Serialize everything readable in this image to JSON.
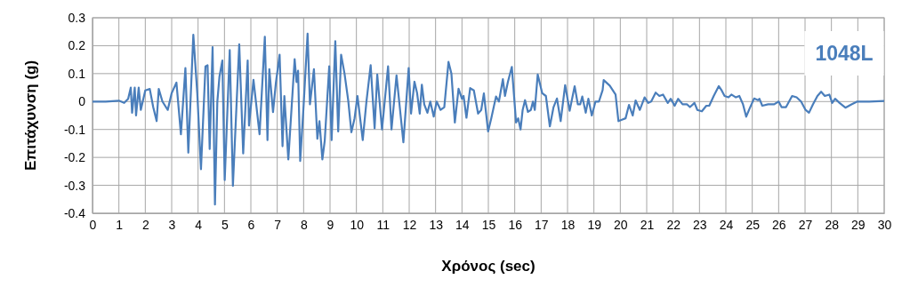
{
  "chart_data": {
    "type": "line",
    "xlabel": "Χρόνος (sec)",
    "ylabel": "Επιτάχυνση (g)",
    "annotations": [
      "1048L"
    ],
    "xlim": [
      0,
      30
    ],
    "xticks": [
      0,
      1,
      2,
      3,
      4,
      5,
      6,
      7,
      8,
      9,
      10,
      11,
      12,
      13,
      14,
      15,
      16,
      17,
      18,
      19,
      20,
      21,
      22,
      23,
      24,
      25,
      26,
      27,
      28,
      29,
      30
    ],
    "ylim": [
      -0.4,
      0.3
    ],
    "yticks": [
      -0.4,
      -0.3,
      -0.2,
      -0.1,
      0,
      0.1,
      0.2,
      0.3
    ],
    "grid": true,
    "line_style": "solid",
    "series": [
      {
        "color": "#4a7ebb",
        "x": [
          0,
          0.5,
          1.0,
          1.2,
          1.35,
          1.45,
          1.5,
          1.6,
          1.65,
          1.75,
          1.83,
          2.0,
          2.17,
          2.3,
          2.43,
          2.51,
          2.65,
          2.85,
          3.0,
          3.18,
          3.35,
          3.52,
          3.63,
          3.82,
          3.97,
          4.11,
          4.28,
          4.36,
          4.44,
          4.55,
          4.64,
          4.73,
          4.81,
          4.92,
          5.01,
          5.2,
          5.32,
          5.56,
          5.71,
          5.88,
          5.93,
          6.1,
          6.33,
          6.53,
          6.63,
          6.7,
          6.84,
          6.95,
          7.09,
          7.2,
          7.27,
          7.42,
          7.66,
          7.73,
          7.79,
          7.87,
          8.0,
          8.15,
          8.24,
          8.39,
          8.52,
          8.6,
          8.71,
          8.8,
          8.97,
          9.06,
          9.2,
          9.31,
          9.42,
          9.55,
          9.69,
          9.81,
          9.93,
          10.04,
          10.24,
          10.38,
          10.54,
          10.69,
          10.79,
          10.97,
          11.2,
          11.33,
          11.52,
          11.78,
          11.98,
          12.07,
          12.2,
          12.3,
          12.4,
          12.48,
          12.57,
          12.69,
          12.8,
          12.93,
          13.04,
          13.19,
          13.33,
          13.49,
          13.6,
          13.73,
          13.87,
          14.0,
          14.06,
          14.17,
          14.31,
          14.45,
          14.61,
          14.73,
          14.83,
          14.99,
          15.11,
          15.29,
          15.4,
          15.55,
          15.63,
          15.74,
          15.89,
          16.05,
          16.13,
          16.22,
          16.3,
          16.39,
          16.5,
          16.61,
          16.69,
          16.76,
          16.87,
          17.04,
          17.18,
          17.33,
          17.47,
          17.6,
          17.74,
          17.91,
          18.08,
          18.27,
          18.39,
          18.48,
          18.56,
          18.69,
          18.79,
          18.92,
          19.06,
          19.19,
          19.33,
          19.37,
          19.6,
          19.82,
          19.93,
          20.06,
          20.2,
          20.33,
          20.47,
          20.58,
          20.74,
          20.92,
          21.06,
          21.17,
          21.34,
          21.48,
          21.62,
          21.8,
          21.91,
          22.06,
          22.19,
          22.36,
          22.53,
          22.64,
          22.81,
          22.92,
          23.09,
          23.26,
          23.37,
          23.54,
          23.73,
          23.84,
          23.95,
          24.1,
          24.21,
          24.38,
          24.51,
          24.65,
          24.77,
          24.9,
          25.07,
          25.22,
          25.27,
          25.38,
          25.6,
          25.83,
          26.0,
          26.11,
          26.28,
          26.51,
          26.68,
          26.85,
          27.02,
          27.15,
          27.3,
          27.47,
          27.61,
          27.75,
          27.92,
          28.03,
          28.14,
          28.31,
          28.53,
          28.76,
          28.98,
          29.43,
          30
        ],
        "values": [
          0,
          0,
          0.003,
          -0.005,
          0.01,
          0.05,
          -0.04,
          0.05,
          -0.05,
          0.05,
          -0.03,
          0.04,
          0.045,
          -0.02,
          -0.07,
          0.045,
          0.0,
          -0.03,
          0.03,
          0.068,
          -0.117,
          0.12,
          -0.183,
          0.239,
          0.03,
          -0.242,
          0.126,
          0.13,
          -0.17,
          0.195,
          -0.369,
          0.0,
          0.089,
          0.147,
          -0.281,
          0.184,
          -0.302,
          0.205,
          -0.186,
          0.147,
          -0.086,
          0.078,
          -0.117,
          0.232,
          -0.138,
          0.116,
          -0.038,
          0.068,
          0.168,
          -0.16,
          0.02,
          -0.207,
          0.152,
          0.07,
          0.11,
          -0.213,
          -0.013,
          0.243,
          -0.01,
          0.116,
          -0.133,
          -0.07,
          -0.207,
          -0.14,
          0.126,
          -0.138,
          0.216,
          -0.107,
          0.168,
          0.1,
          0.004,
          -0.11,
          -0.06,
          0.02,
          -0.138,
          0.0,
          0.13,
          -0.096,
          0.097,
          -0.1,
          0.126,
          -0.1,
          0.094,
          -0.146,
          0.12,
          -0.043,
          0.071,
          0.03,
          -0.043,
          0.06,
          -0.01,
          -0.04,
          0.0,
          -0.054,
          0.0,
          -0.03,
          -0.02,
          0.142,
          0.1,
          -0.075,
          0.046,
          0.01,
          0.02,
          -0.058,
          0.048,
          0.04,
          -0.043,
          -0.03,
          0.029,
          -0.107,
          -0.06,
          0.018,
          0.0,
          0.08,
          0.02,
          0.07,
          0.124,
          -0.075,
          -0.06,
          -0.1,
          -0.03,
          0.005,
          -0.037,
          -0.03,
          0.0,
          -0.03,
          0.097,
          0.03,
          0.02,
          -0.089,
          -0.02,
          0.011,
          -0.07,
          0.059,
          -0.033,
          0.055,
          -0.01,
          -0.01,
          0.018,
          -0.04,
          0.01,
          -0.05,
          0.0,
          0.0,
          0.041,
          0.077,
          0.057,
          0.025,
          -0.07,
          -0.065,
          -0.06,
          -0.012,
          -0.05,
          0.004,
          -0.03,
          0.015,
          -0.005,
          0.0,
          0.032,
          0.02,
          0.025,
          -0.005,
          0.01,
          -0.015,
          0.01,
          -0.01,
          -0.01,
          -0.02,
          -0.005,
          -0.03,
          -0.035,
          -0.015,
          -0.015,
          0.02,
          0.055,
          0.04,
          0.02,
          0.015,
          0.025,
          0.015,
          0.02,
          -0.01,
          -0.054,
          -0.025,
          0.011,
          0.005,
          0.01,
          -0.015,
          -0.01,
          -0.01,
          0.0,
          -0.02,
          -0.02,
          0.02,
          0.015,
          0.0,
          -0.03,
          -0.04,
          -0.01,
          0.02,
          0.035,
          0.02,
          0.025,
          -0.005,
          0.01,
          -0.005,
          -0.022,
          -0.01,
          0.0,
          0.0,
          0.002
        ]
      }
    ]
  }
}
